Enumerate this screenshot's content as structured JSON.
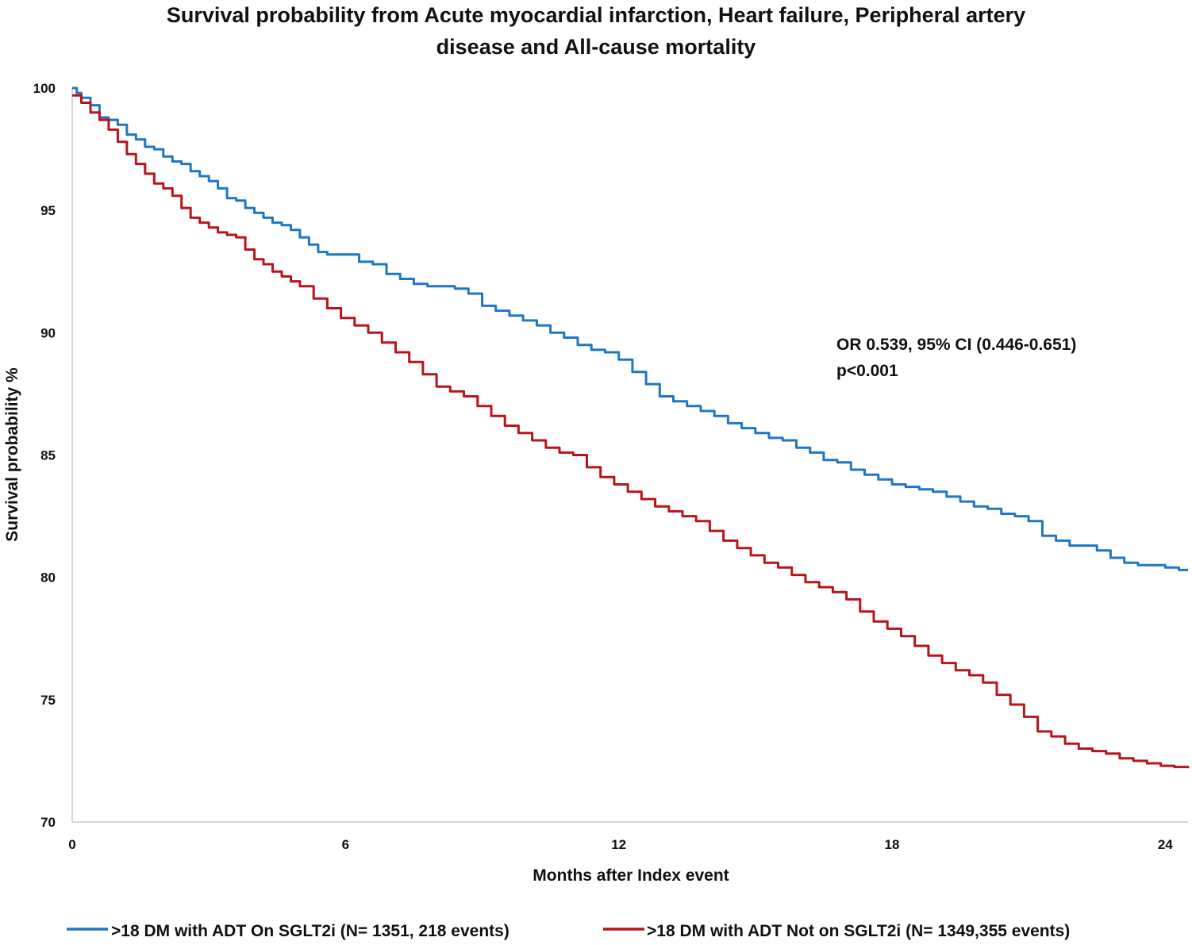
{
  "chart_data": {
    "type": "line",
    "title": [
      "Survival probability from Acute myocardial infarction, Heart failure, Peripheral artery",
      "disease and All-cause mortality"
    ],
    "xlabel": "Months after Index event",
    "ylabel": "Survival probability %",
    "xlim": [
      0,
      24.5
    ],
    "ylim": [
      70,
      100
    ],
    "xticks": [
      0,
      6,
      12,
      18,
      24
    ],
    "yticks": [
      70,
      75,
      80,
      85,
      90,
      95,
      100
    ],
    "grid": false,
    "legend_position": "bottom",
    "step": true,
    "annotations": [
      "OR 0.539, 95% CI (0.446-0.651)",
      "p<0.001"
    ],
    "series": [
      {
        "name": ">18 DM with ADT On SGLT2i (N= 1351, 218 events)",
        "color": "#1f77c4",
        "x": [
          0,
          0.1,
          0.2,
          0.4,
          0.6,
          0.8,
          1.0,
          1.2,
          1.4,
          1.6,
          1.8,
          2.0,
          2.2,
          2.4,
          2.6,
          2.8,
          3.0,
          3.2,
          3.4,
          3.6,
          3.8,
          4.0,
          4.2,
          4.4,
          4.6,
          4.8,
          5.0,
          5.2,
          5.4,
          5.6,
          5.8,
          6.0,
          6.3,
          6.6,
          6.9,
          7.2,
          7.5,
          7.8,
          8.1,
          8.4,
          8.7,
          9.0,
          9.3,
          9.6,
          9.9,
          10.2,
          10.5,
          10.8,
          11.1,
          11.4,
          11.7,
          12.0,
          12.3,
          12.6,
          12.9,
          13.2,
          13.5,
          13.8,
          14.1,
          14.4,
          14.7,
          15.0,
          15.3,
          15.6,
          15.9,
          16.2,
          16.5,
          16.8,
          17.1,
          17.4,
          17.7,
          18.0,
          18.3,
          18.6,
          18.9,
          19.2,
          19.5,
          19.8,
          20.1,
          20.4,
          20.7,
          21.0,
          21.3,
          21.6,
          21.9,
          22.2,
          22.5,
          22.8,
          23.1,
          23.4,
          23.7,
          24.0,
          24.3,
          24.5
        ],
        "y": [
          100.0,
          99.8,
          99.6,
          99.3,
          98.8,
          98.7,
          98.5,
          98.1,
          97.9,
          97.6,
          97.5,
          97.2,
          97.0,
          96.9,
          96.6,
          96.4,
          96.2,
          95.9,
          95.5,
          95.4,
          95.1,
          94.9,
          94.7,
          94.5,
          94.4,
          94.2,
          93.9,
          93.6,
          93.3,
          93.2,
          93.2,
          93.2,
          92.9,
          92.8,
          92.4,
          92.2,
          92.0,
          91.9,
          91.9,
          91.8,
          91.6,
          91.1,
          90.9,
          90.7,
          90.5,
          90.3,
          90.0,
          89.8,
          89.5,
          89.3,
          89.2,
          88.9,
          88.4,
          87.9,
          87.4,
          87.2,
          87.0,
          86.8,
          86.6,
          86.3,
          86.1,
          85.9,
          85.7,
          85.6,
          85.3,
          85.1,
          84.8,
          84.7,
          84.4,
          84.2,
          84.0,
          83.8,
          83.7,
          83.6,
          83.5,
          83.3,
          83.1,
          82.9,
          82.8,
          82.6,
          82.5,
          82.3,
          81.7,
          81.5,
          81.3,
          81.3,
          81.1,
          80.8,
          80.6,
          80.5,
          80.5,
          80.4,
          80.3,
          80.3
        ]
      },
      {
        "name": ">18 DM with ADT Not on SGLT2i (N= 1349,355 events)",
        "color": "#b8141b",
        "x": [
          0,
          0.2,
          0.4,
          0.6,
          0.8,
          1.0,
          1.2,
          1.4,
          1.6,
          1.8,
          2.0,
          2.2,
          2.4,
          2.6,
          2.8,
          3.0,
          3.2,
          3.4,
          3.6,
          3.8,
          4.0,
          4.2,
          4.4,
          4.6,
          4.8,
          5.0,
          5.3,
          5.6,
          5.9,
          6.2,
          6.5,
          6.8,
          7.1,
          7.4,
          7.7,
          8.0,
          8.3,
          8.6,
          8.9,
          9.2,
          9.5,
          9.8,
          10.1,
          10.4,
          10.7,
          11.0,
          11.3,
          11.6,
          11.9,
          12.2,
          12.5,
          12.8,
          13.1,
          13.4,
          13.7,
          14.0,
          14.3,
          14.6,
          14.9,
          15.2,
          15.5,
          15.8,
          16.1,
          16.4,
          16.7,
          17.0,
          17.3,
          17.6,
          17.9,
          18.2,
          18.5,
          18.8,
          19.1,
          19.4,
          19.7,
          20.0,
          20.3,
          20.6,
          20.9,
          21.2,
          21.5,
          21.8,
          22.1,
          22.4,
          22.7,
          23.0,
          23.3,
          23.6,
          23.9,
          24.2,
          24.5
        ],
        "y": [
          99.7,
          99.4,
          99.0,
          98.7,
          98.3,
          97.8,
          97.3,
          96.9,
          96.5,
          96.1,
          95.9,
          95.6,
          95.1,
          94.7,
          94.5,
          94.3,
          94.1,
          94.0,
          93.9,
          93.4,
          93.0,
          92.8,
          92.5,
          92.3,
          92.1,
          91.9,
          91.4,
          91.0,
          90.6,
          90.3,
          90.0,
          89.6,
          89.2,
          88.8,
          88.3,
          87.8,
          87.6,
          87.4,
          87.0,
          86.6,
          86.2,
          85.9,
          85.6,
          85.3,
          85.1,
          85.0,
          84.5,
          84.1,
          83.8,
          83.5,
          83.2,
          82.9,
          82.7,
          82.5,
          82.3,
          81.9,
          81.5,
          81.2,
          80.9,
          80.6,
          80.4,
          80.1,
          79.8,
          79.6,
          79.4,
          79.1,
          78.6,
          78.2,
          77.9,
          77.6,
          77.2,
          76.8,
          76.5,
          76.2,
          76.0,
          75.7,
          75.2,
          74.8,
          74.3,
          73.7,
          73.5,
          73.2,
          73.0,
          72.9,
          72.8,
          72.6,
          72.5,
          72.4,
          72.3,
          72.25,
          72.2
        ]
      }
    ]
  }
}
